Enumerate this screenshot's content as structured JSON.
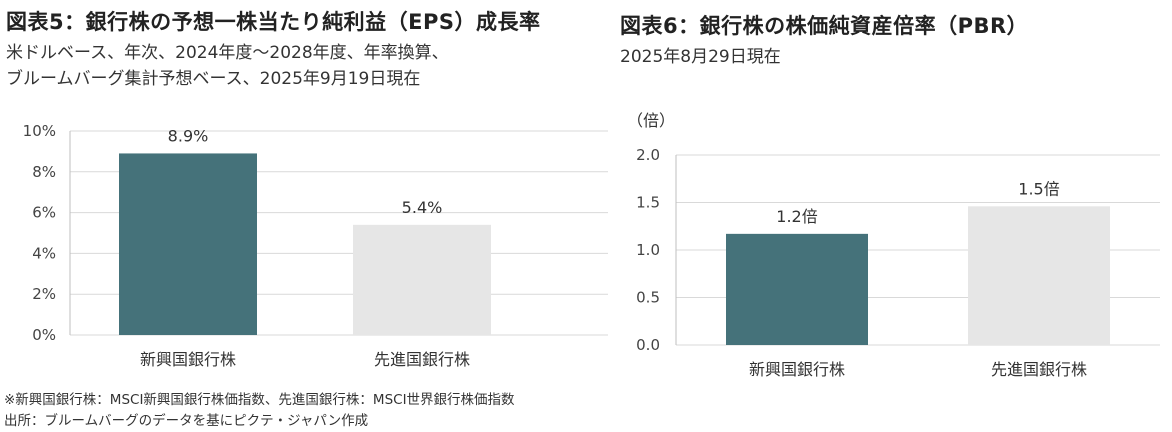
{
  "chart_data": [
    {
      "type": "bar",
      "title": "図表5：銀行株の予想一株当たり純利益（EPS）成長率",
      "subtitle_lines": [
        "米ドルベース、年次、2024年度～2028年度、年率換算、",
        "ブルームバーグ集計予想ベース、2025年9月19日現在"
      ],
      "categories": [
        "新興国銀行株",
        "先進国銀行株"
      ],
      "values": [
        8.9,
        5.4
      ],
      "value_labels": [
        "8.9%",
        "5.4%"
      ],
      "colors": [
        "#45727a",
        "#e6e6e6"
      ],
      "ylim": [
        0,
        10
      ],
      "yticks": [
        0,
        2,
        4,
        6,
        8,
        10
      ],
      "ytick_labels": [
        "0%",
        "2%",
        "4%",
        "6%",
        "8%",
        "10%"
      ],
      "grid": true
    },
    {
      "type": "bar",
      "title": "図表6：銀行株の株価純資産倍率（PBR）",
      "subtitle_lines": [
        "2025年8月29日現在"
      ],
      "unit_label": "（倍）",
      "categories": [
        "新興国銀行株",
        "先進国銀行株"
      ],
      "values": [
        1.17,
        1.46
      ],
      "value_labels": [
        "1.2倍",
        "1.5倍"
      ],
      "colors": [
        "#45727a",
        "#e6e6e6"
      ],
      "ylim": [
        0,
        2
      ],
      "yticks": [
        0,
        0.5,
        1.0,
        1.5,
        2.0
      ],
      "ytick_labels": [
        "0.0",
        "0.5",
        "1.0",
        "1.5",
        "2.0"
      ],
      "grid": true
    }
  ],
  "notes": [
    "※新興国銀行株：MSCI新興国銀行株価指数、先進国銀行株：MSCI世界銀行株価指数",
    "出所：ブルームバーグのデータを基にピクテ・ジャパン作成"
  ]
}
